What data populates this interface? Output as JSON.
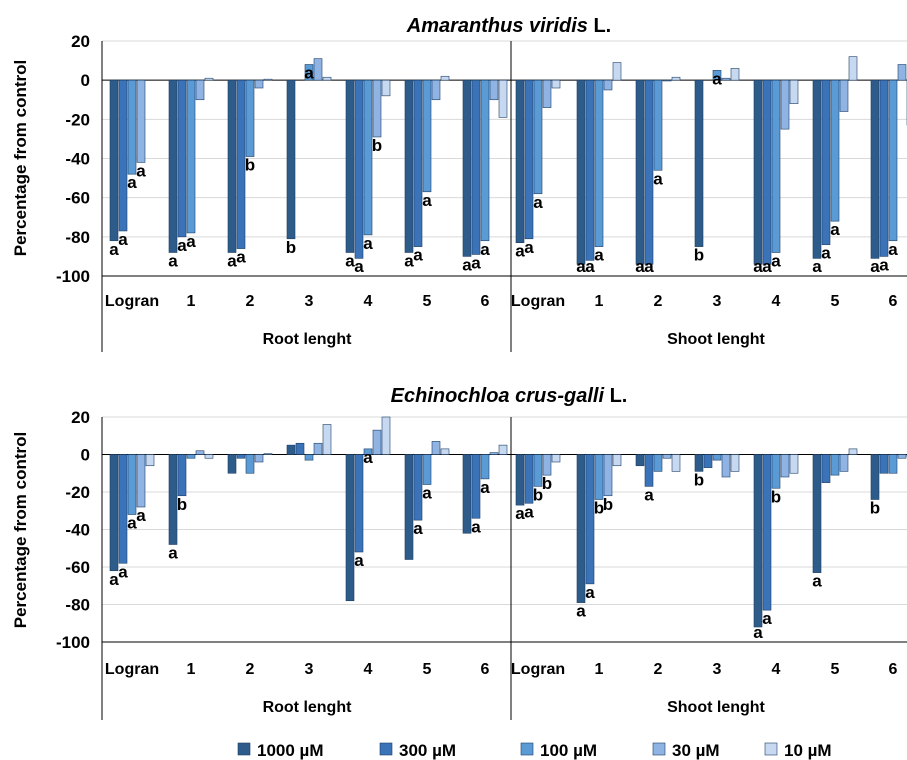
{
  "chart_data": [
    {
      "type": "bar",
      "title": "Amaranthus viridis L.",
      "title_italic": "Amaranthus viridis",
      "title_plain": "L.",
      "ylabel": "Percentage from control",
      "ylim": [
        -100,
        20
      ],
      "yticks": [
        20,
        0,
        -20,
        -40,
        -60,
        -80,
        -100
      ],
      "gridlines": true,
      "categories": [
        "Logran",
        "1",
        "2",
        "3",
        "4",
        "5",
        "6"
      ],
      "groups": [
        "Root lenght",
        "Shoot lenght"
      ],
      "series": [
        {
          "name": "1000 µM",
          "values": [
            [
              -82,
              -88,
              -88,
              -81,
              -88,
              -88,
              -90
            ],
            [
              -83,
              -94,
              -94,
              -85,
              -94,
              -91,
              -91
            ]
          ]
        },
        {
          "name": "300 µM",
          "values": [
            [
              -77,
              -80,
              -86,
              null,
              -91,
              -85,
              -89
            ],
            [
              -81,
              -92,
              -94,
              null,
              -94,
              -84,
              -90
            ]
          ]
        },
        {
          "name": "100 µM",
          "values": [
            [
              -48,
              -78,
              -39,
              8,
              -79,
              -57,
              -82
            ],
            [
              -58,
              -85,
              -46,
              5,
              -88,
              -72,
              -82
            ]
          ]
        },
        {
          "name": "30 µM",
          "values": [
            [
              -42,
              -10,
              -4,
              11,
              -29,
              -10,
              -10
            ],
            [
              -14,
              -5,
              0,
              1,
              -25,
              -16,
              8
            ]
          ]
        },
        {
          "name": "10 µM",
          "values": [
            [
              null,
              1,
              0.5,
              1.5,
              -8,
              2,
              -19
            ],
            [
              -4,
              9,
              1.5,
              6,
              -12,
              12,
              -23
            ]
          ]
        }
      ],
      "significance": [
        [
          "a",
          "a",
          "a",
          "a",
          "a",
          "a",
          "a",
          "a",
          "a",
          "b",
          "a",
          "a",
          "b",
          "a",
          "a",
          "a",
          "a",
          "b",
          "a",
          "a",
          "a",
          "a",
          "a",
          "a",
          "a",
          "a"
        ],
        [
          "a",
          "a",
          "a",
          "a",
          "a",
          "a",
          "a",
          "a",
          "a",
          "b",
          "a",
          "a",
          "a",
          "a",
          "a",
          "a",
          "a",
          "a",
          "a",
          "a",
          "a"
        ]
      ]
    },
    {
      "type": "bar",
      "title": "Echinochloa crus-galli L.",
      "title_italic": "Echinochloa crus-galli",
      "title_plain": "L.",
      "ylabel": "Percentage from control",
      "ylim": [
        -100,
        20
      ],
      "yticks": [
        20,
        0,
        -20,
        -40,
        -60,
        -80,
        -100
      ],
      "gridlines": true,
      "categories": [
        "Logran",
        "1",
        "2",
        "3",
        "4",
        "5",
        "6"
      ],
      "groups": [
        "Root lenght",
        "Shoot lenght"
      ],
      "series": [
        {
          "name": "1000 µM",
          "values": [
            [
              -62,
              -48,
              -10,
              5,
              -78,
              -56,
              -42
            ],
            [
              -27,
              -79,
              -6,
              -9,
              -92,
              -63,
              -24
            ]
          ]
        },
        {
          "name": "300 µM",
          "values": [
            [
              -58,
              -22,
              -2,
              6,
              -52,
              -35,
              -34
            ],
            [
              -26,
              -69,
              -17,
              -7,
              -83,
              -15,
              -10
            ]
          ]
        },
        {
          "name": "100 µM",
          "values": [
            [
              -32,
              -2,
              -10,
              -3,
              3,
              -16,
              -13
            ],
            [
              -17,
              -24,
              -9,
              -3,
              -18,
              -11,
              -10
            ]
          ]
        },
        {
          "name": "30 µM",
          "values": [
            [
              -28,
              2,
              -4,
              6,
              13,
              7,
              1
            ],
            [
              -11,
              -22,
              -2,
              -12,
              -12,
              -9,
              -2
            ]
          ]
        },
        {
          "name": "10 µM",
          "values": [
            [
              -6,
              -2,
              0.5,
              16,
              20,
              3,
              5
            ],
            [
              -4,
              -6,
              -9,
              -9,
              -10,
              3,
              -1
            ]
          ]
        }
      ],
      "significance": [
        [
          "a",
          "a",
          "a",
          "a",
          "a",
          "b",
          "a",
          "a",
          "a",
          "a",
          "a",
          "a"
        ],
        [
          "a",
          "a",
          "b",
          "b",
          "b",
          "a",
          "a",
          "a",
          "b",
          "a",
          "a",
          "b",
          "a",
          "b"
        ]
      ]
    }
  ],
  "legend": {
    "position": "bottom",
    "items": [
      {
        "label": "1000 µM",
        "color": "#2E5C8A"
      },
      {
        "label": "300 µM",
        "color": "#3B73B8"
      },
      {
        "label": "100 µM",
        "color": "#5B9BD5"
      },
      {
        "label": "30 µM",
        "color": "#8FB4E3"
      },
      {
        "label": "10 µM",
        "color": "#C6D9F1"
      }
    ]
  }
}
